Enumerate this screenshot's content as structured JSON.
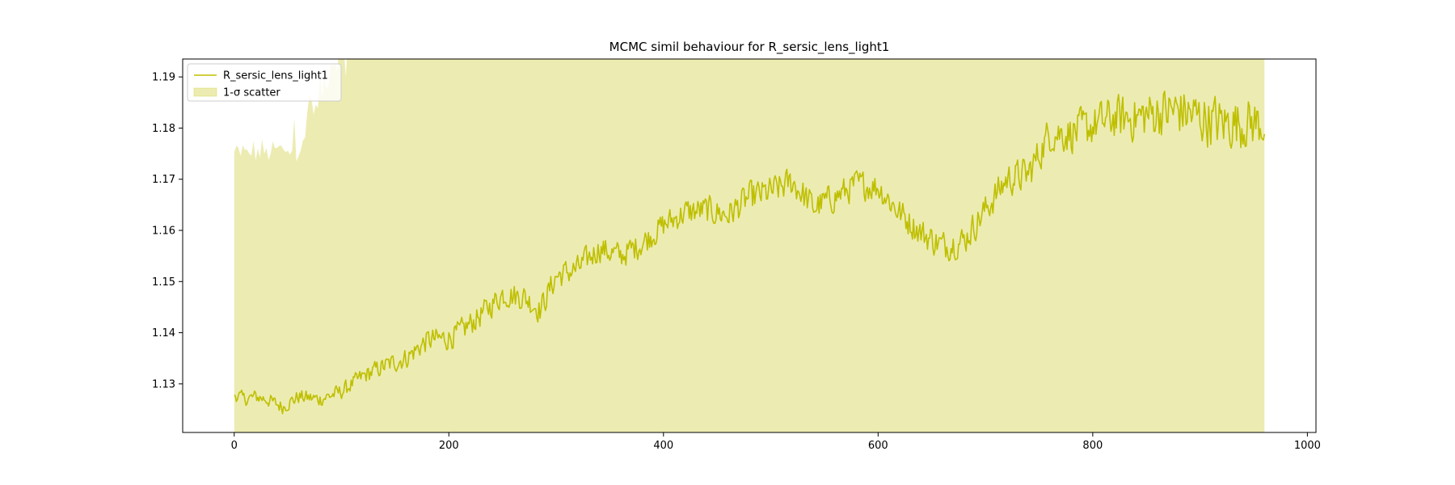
{
  "chart_data": {
    "type": "line",
    "title": "MCMC simil behaviour for R_sersic_lens_light1",
    "xlabel": "",
    "ylabel": "",
    "xlim": [
      -48,
      1008
    ],
    "ylim": [
      1.1205,
      1.1935
    ],
    "xticks": [
      0,
      200,
      400,
      600,
      800,
      1000
    ],
    "yticks": [
      1.13,
      1.14,
      1.15,
      1.16,
      1.17,
      1.18,
      1.19
    ],
    "legend": {
      "placement": "upper left",
      "entries": [
        {
          "label": "R_sersic_lens_light1",
          "kind": "line"
        },
        {
          "label": "1-σ scatter",
          "kind": "band"
        }
      ]
    },
    "series": [
      {
        "name": "R_sersic_lens_light1",
        "color": "#bfbf00",
        "x_range": [
          0,
          960
        ],
        "anchors": {
          "x": [
            0,
            10,
            20,
            30,
            45,
            60,
            80,
            100,
            120,
            140,
            160,
            180,
            200,
            210,
            230,
            250,
            270,
            285,
            300,
            320,
            340,
            360,
            380,
            400,
            420,
            440,
            460,
            480,
            500,
            520,
            540,
            560,
            580,
            600,
            620,
            640,
            660,
            680,
            700,
            720,
            740,
            760,
            780,
            800,
            820,
            840,
            860,
            880,
            900,
            920,
            940,
            960
          ],
          "y": [
            1.128,
            1.127,
            1.1275,
            1.127,
            1.1255,
            1.1275,
            1.127,
            1.1285,
            1.1315,
            1.1335,
            1.135,
            1.1385,
            1.139,
            1.14,
            1.1435,
            1.1475,
            1.147,
            1.1445,
            1.151,
            1.1525,
            1.1565,
            1.155,
            1.1575,
            1.161,
            1.1635,
            1.164,
            1.163,
            1.1665,
            1.1675,
            1.1695,
            1.1645,
            1.1665,
            1.169,
            1.1685,
            1.1635,
            1.1595,
            1.157,
            1.158,
            1.164,
            1.17,
            1.171,
            1.179,
            1.179,
            1.1805,
            1.182,
            1.182,
            1.183,
            1.1835,
            1.182,
            1.181,
            1.181,
            1.181
          ]
        },
        "noise_amplitude": {
          "x": [
            0,
            100,
            200,
            300,
            400,
            500,
            600,
            700,
            800,
            900,
            960
          ],
          "y": [
            0.0012,
            0.0014,
            0.0022,
            0.0024,
            0.0024,
            0.0028,
            0.0026,
            0.0028,
            0.0038,
            0.0048,
            0.0045
          ]
        }
      }
    ],
    "band": {
      "name": "1-σ scatter",
      "color": "#bfbf00",
      "opacity": 0.3,
      "x_range": [
        0,
        960
      ],
      "lower": 1.1205,
      "upper_start": 1.175,
      "upper_ramp_end_x": 110
    }
  }
}
